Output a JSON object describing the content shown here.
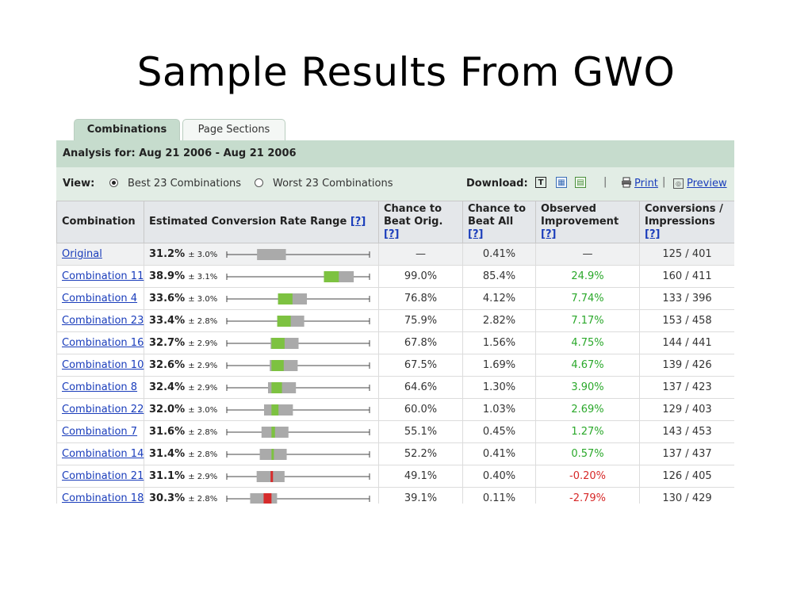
{
  "slide_title": "Sample Results From GWO",
  "tabs": [
    "Combinations",
    "Page Sections"
  ],
  "analysis": "Analysis for: Aug 21 2006 - Aug 21 2006",
  "view": {
    "label": "View:",
    "best": "Best 23 Combinations",
    "worst": "Worst 23 Combinations",
    "selected": "best"
  },
  "download": {
    "label": "Download:",
    "print": "Print",
    "preview": "Preview"
  },
  "colors": {
    "positive": "#2aa82a",
    "negative": "#d72828",
    "interval": "#aaaaaa",
    "header_bg": "#c6dccd",
    "green_bar": "#7dc241",
    "red_bar": "#d62b2b"
  },
  "columns": {
    "combination": "Combination",
    "range": "Estimated Conversion Rate Range",
    "range_help": "[?]",
    "beat_orig_1": "Chance to",
    "beat_orig_2": "Beat Orig.",
    "beat_orig_help": "[?]",
    "beat_all_1": "Chance to",
    "beat_all_2": "Beat All",
    "beat_all_help": "[?]",
    "improve_1": "Observed",
    "improve_2": "Improvement",
    "improve_help": "[?]",
    "conv_1": "Conversions /",
    "conv_2": "Impressions",
    "conv_help": "[?]"
  },
  "rows": [
    {
      "name": "Original",
      "rate": "31.2%",
      "err": "± 3.0%",
      "rate_value": 31.2,
      "err_value": 3.0,
      "beat_orig": "—",
      "beat_all": "0.41%",
      "improvement": "—",
      "improvement_sign": "neutral",
      "conversions": "125 / 401"
    },
    {
      "name": "Combination 11",
      "rate": "38.9%",
      "err": "± 3.1%",
      "rate_value": 38.9,
      "err_value": 3.1,
      "beat_orig": "99.0%",
      "beat_all": "85.4%",
      "improvement": "24.9%",
      "improvement_sign": "positive",
      "conversions": "160 / 411"
    },
    {
      "name": "Combination 4",
      "rate": "33.6%",
      "err": "± 3.0%",
      "rate_value": 33.6,
      "err_value": 3.0,
      "beat_orig": "76.8%",
      "beat_all": "4.12%",
      "improvement": "7.74%",
      "improvement_sign": "positive",
      "conversions": "133 / 396"
    },
    {
      "name": "Combination 23",
      "rate": "33.4%",
      "err": "± 2.8%",
      "rate_value": 33.4,
      "err_value": 2.8,
      "beat_orig": "75.9%",
      "beat_all": "2.82%",
      "improvement": "7.17%",
      "improvement_sign": "positive",
      "conversions": "153 / 458"
    },
    {
      "name": "Combination 16",
      "rate": "32.7%",
      "err": "± 2.9%",
      "rate_value": 32.7,
      "err_value": 2.9,
      "beat_orig": "67.8%",
      "beat_all": "1.56%",
      "improvement": "4.75%",
      "improvement_sign": "positive",
      "conversions": "144 / 441"
    },
    {
      "name": "Combination 10",
      "rate": "32.6%",
      "err": "± 2.9%",
      "rate_value": 32.6,
      "err_value": 2.9,
      "beat_orig": "67.5%",
      "beat_all": "1.69%",
      "improvement": "4.67%",
      "improvement_sign": "positive",
      "conversions": "139 / 426"
    },
    {
      "name": "Combination 8",
      "rate": "32.4%",
      "err": "± 2.9%",
      "rate_value": 32.4,
      "err_value": 2.9,
      "beat_orig": "64.6%",
      "beat_all": "1.30%",
      "improvement": "3.90%",
      "improvement_sign": "positive",
      "conversions": "137 / 423"
    },
    {
      "name": "Combination 22",
      "rate": "32.0%",
      "err": "± 3.0%",
      "rate_value": 32.0,
      "err_value": 3.0,
      "beat_orig": "60.0%",
      "beat_all": "1.03%",
      "improvement": "2.69%",
      "improvement_sign": "positive",
      "conversions": "129 / 403"
    },
    {
      "name": "Combination 7",
      "rate": "31.6%",
      "err": "± 2.8%",
      "rate_value": 31.6,
      "err_value": 2.8,
      "beat_orig": "55.1%",
      "beat_all": "0.45%",
      "improvement": "1.27%",
      "improvement_sign": "positive",
      "conversions": "143 / 453"
    },
    {
      "name": "Combination 14",
      "rate": "31.4%",
      "err": "± 2.8%",
      "rate_value": 31.4,
      "err_value": 2.8,
      "beat_orig": "52.2%",
      "beat_all": "0.41%",
      "improvement": "0.57%",
      "improvement_sign": "positive",
      "conversions": "137 / 437"
    },
    {
      "name": "Combination 21",
      "rate": "31.1%",
      "err": "± 2.9%",
      "rate_value": 31.1,
      "err_value": 2.9,
      "beat_orig": "49.1%",
      "beat_all": "0.40%",
      "improvement": "-0.20%",
      "improvement_sign": "negative",
      "conversions": "126 / 405"
    },
    {
      "name": "Combination 18",
      "rate": "30.3%",
      "err": "± 2.8%",
      "rate_value": 30.3,
      "err_value": 2.8,
      "beat_orig": "39.1%",
      "beat_all": "0.11%",
      "improvement": "-2.79%",
      "improvement_sign": "negative",
      "conversions": "130 / 429"
    }
  ]
}
